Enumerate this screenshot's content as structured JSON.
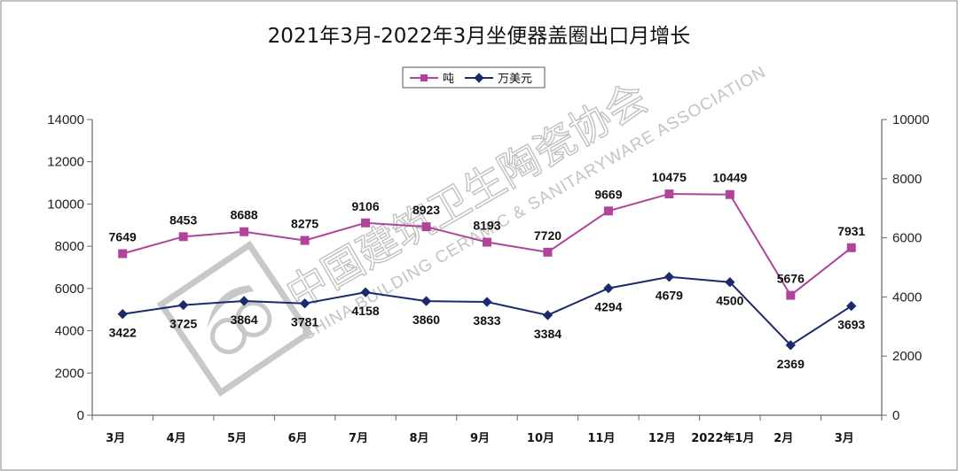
{
  "chart_data": {
    "type": "line",
    "title": "2021年3月-2022年3月坐便器盖圈出口月增长",
    "categories": [
      "3月",
      "4月",
      "5月",
      "6月",
      "7月",
      "8月",
      "9月",
      "10月",
      "11月",
      "12月",
      "2022年1月",
      "2月",
      "3月"
    ],
    "series": [
      {
        "name": "吨",
        "axis": "left",
        "color": "#b0449a",
        "values": [
          7649,
          8453,
          8688,
          8275,
          9106,
          8923,
          8193,
          7720,
          9669,
          10475,
          10449,
          5676,
          7931
        ]
      },
      {
        "name": "万美元",
        "axis": "right",
        "color": "#1a2a6c",
        "values": [
          3422,
          3725,
          3864,
          3781,
          4158,
          3860,
          3833,
          3384,
          4294,
          4679,
          4500,
          2369,
          3693
        ]
      }
    ],
    "y_left": {
      "min": 0,
      "max": 14000,
      "step": 2000
    },
    "y_right": {
      "min": 0,
      "max": 10000,
      "step": 2000
    },
    "legend_position": "top-center",
    "grid": false
  },
  "watermark": {
    "cn": "中国建筑卫生陶瓷协会",
    "en": "CHINA BUILDING CERAMIC & SANITARYWARE ASSOCIATION"
  }
}
